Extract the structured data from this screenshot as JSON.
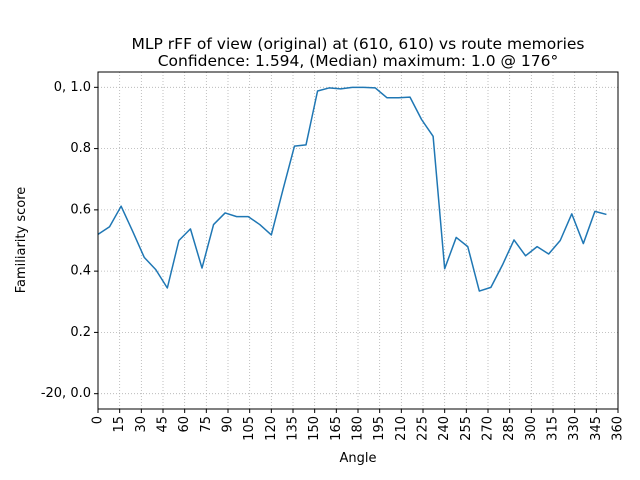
{
  "chart_data": {
    "type": "line",
    "title_lines": [
      "MLP rFF of view (original) at (610, 610) vs route memories",
      "Confidence: 1.594, (Median) maximum: 1.0 @ 176°"
    ],
    "xlabel": "Angle",
    "ylabel": "Familiarity score",
    "xlim": [
      0,
      360
    ],
    "ylim": [
      -0.05,
      1.05
    ],
    "x_ticks": [
      0,
      15,
      30,
      45,
      60,
      75,
      90,
      105,
      120,
      135,
      150,
      165,
      180,
      195,
      210,
      225,
      240,
      255,
      270,
      285,
      300,
      315,
      330,
      345,
      360
    ],
    "x_tick_labels": [
      "0",
      "15",
      "30",
      "45",
      "60",
      "75",
      "90",
      "105",
      "120",
      "135",
      "150",
      "165",
      "180",
      "195",
      "210",
      "225",
      "240",
      "255",
      "270",
      "285",
      "300",
      "315",
      "330",
      "345",
      "360"
    ],
    "y_ticks": [
      0.0,
      0.2,
      0.4,
      0.6,
      0.8,
      1.0
    ],
    "y_tick_labels": [
      "-20, 0.0",
      "0.2",
      "0.4",
      "0.6",
      "0.8",
      "0, 1.0"
    ],
    "grid": true,
    "grid_style": "dotted",
    "series": [
      {
        "color": "#1f77b4",
        "x": [
          0,
          8,
          16,
          24,
          32,
          40,
          48,
          56,
          64,
          72,
          80,
          88,
          96,
          104,
          112,
          120,
          128,
          136,
          144,
          152,
          160,
          168,
          176,
          184,
          192,
          200,
          208,
          216,
          224,
          232,
          240,
          248,
          256,
          264,
          272,
          280,
          288,
          296,
          304,
          312,
          320,
          328,
          336,
          344,
          352
        ],
        "y": [
          0.52,
          0.545,
          0.612,
          0.53,
          0.445,
          0.405,
          0.345,
          0.5,
          0.538,
          0.41,
          0.552,
          0.59,
          0.578,
          0.578,
          0.552,
          0.518,
          0.665,
          0.808,
          0.812,
          0.988,
          0.998,
          0.995,
          1.0,
          1.0,
          0.998,
          0.966,
          0.966,
          0.968,
          0.895,
          0.84,
          0.408,
          0.51,
          0.48,
          0.335,
          0.347,
          0.42,
          0.502,
          0.45,
          0.48,
          0.456,
          0.5,
          0.587,
          0.49,
          0.595,
          0.585
        ]
      }
    ]
  }
}
